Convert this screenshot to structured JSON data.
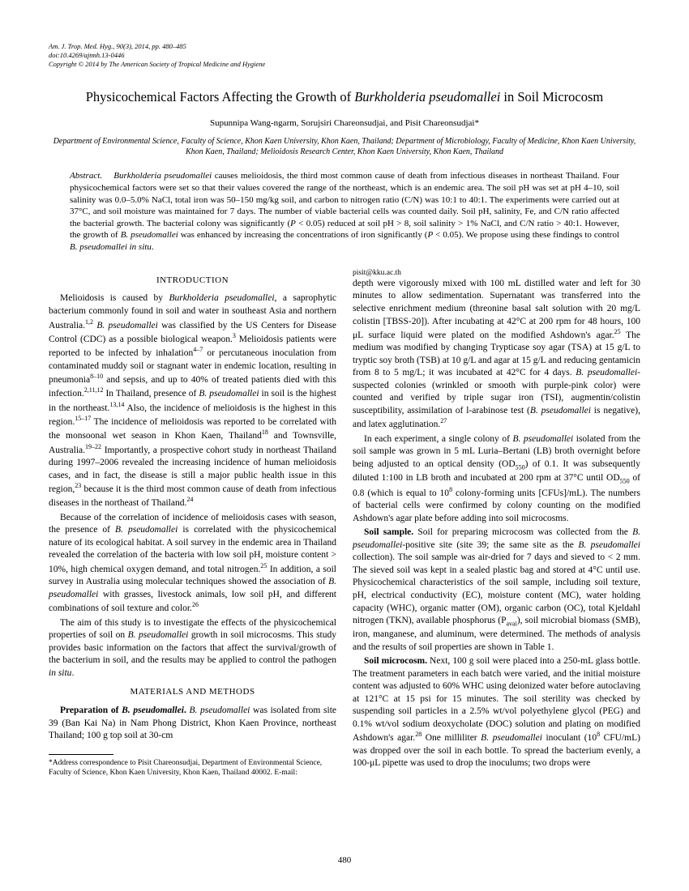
{
  "meta": {
    "journal": "Am. J. Trop. Med. Hyg., 90(3), 2014, pp. 480–485",
    "doi": "doi:10.4269/ajtmh.13-0446",
    "copyright": "Copyright © 2014 by The American Society of Tropical Medicine and Hygiene"
  },
  "title": {
    "pre": "Physicochemical Factors Affecting the Growth of ",
    "ital": "Burkholderia pseudomallei",
    "post": " in Soil Microcosm"
  },
  "authors": "Supunnipa Wang-ngarm, Sorujsiri Chareonsudjai, and Pisit Chareonsudjai*",
  "affiliations": "Department of Environmental Science, Faculty of Science, Khon Kaen University, Khon Kaen, Thailand; Department of Microbiology, Faculty of Medicine, Khon Kaen University, Khon Kaen, Thailand; Melioidosis Research Center, Khon Kaen University, Khon Kaen, Thailand",
  "abstract": {
    "label": "Abstract.",
    "text": "   Burkholderia pseudomallei causes melioidosis, the third most common cause of death from infectious diseases in northeast Thailand. Four physicochemical factors were set so that their values covered the range of the northeast, which is an endemic area. The soil pH was set at pH 4–10, soil salinity was 0.0–5.0% NaCl, total iron was 50–150 mg/kg soil, and carbon to nitrogen ratio (C/N) was 10:1 to 40:1. The experiments were carried out at 37°C, and soil moisture was maintained for 7 days. The number of viable bacterial cells was counted daily. Soil pH, salinity, Fe, and C/N ratio affected the bacterial growth. The bacterial colony was significantly (P < 0.05) reduced at soil pH > 8, soil salinity > 1% NaCl, and C/N ratio > 40:1. However, the growth of B. pseudomallei was enhanced by increasing the concentrations of iron significantly (P < 0.05). We propose using these findings to control B. pseudomallei in situ."
  },
  "headings": {
    "intro": "INTRODUCTION",
    "methods": "MATERIALS AND METHODS"
  },
  "footnote": "*Address correspondence to Pisit Chareonsudjai, Department of Environmental Science, Faculty of Science, Khon Kaen University, Khon Kaen, Thailand 40002. E-mail: pisit@kku.ac.th",
  "page": "480"
}
